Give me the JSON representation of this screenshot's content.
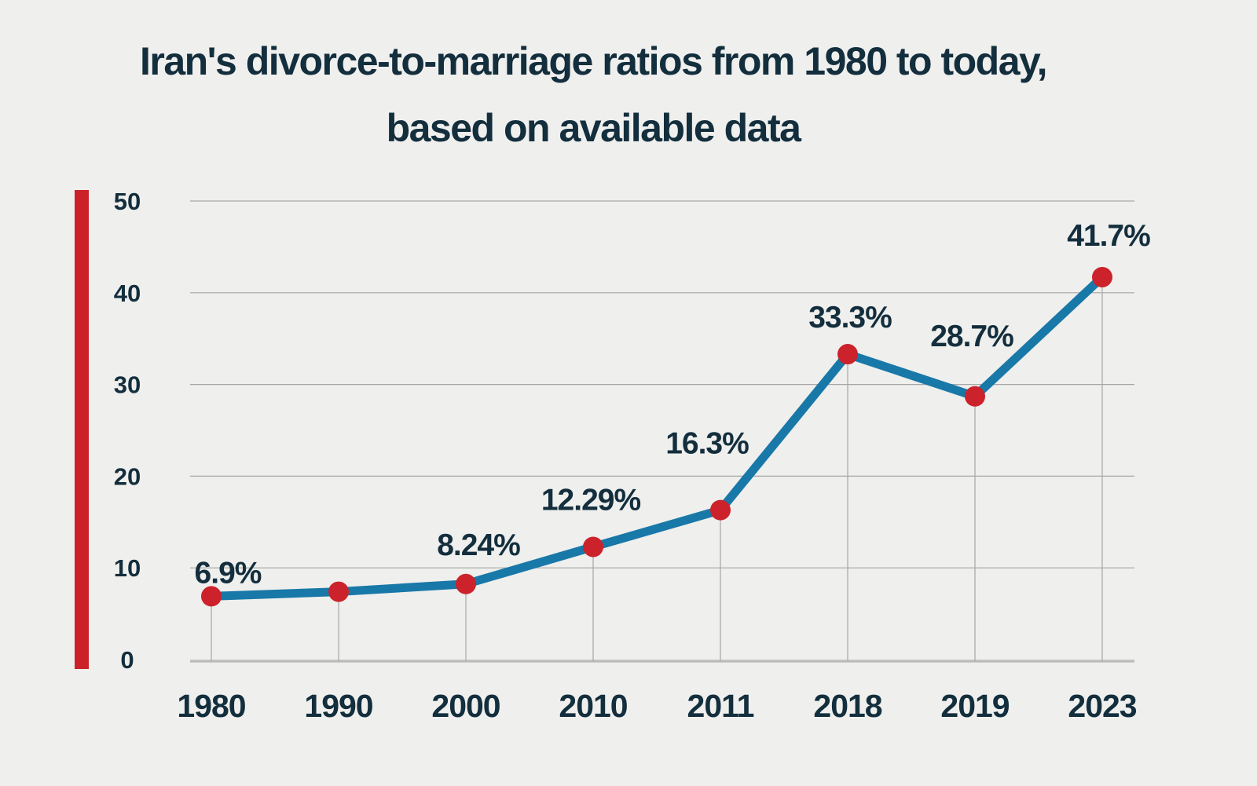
{
  "title": {
    "line1": "Iran's divorce-to-marriage ratios from 1980 to today,",
    "line2": "based on available data"
  },
  "chart_data": {
    "type": "line",
    "title": "Iran's divorce-to-marriage ratios from 1980 to today, based on available data",
    "categories": [
      "1980",
      "1990",
      "2000",
      "2010",
      "2011",
      "2018",
      "2019",
      "2023"
    ],
    "values": [
      6.9,
      7.4,
      8.24,
      12.29,
      16.3,
      33.3,
      28.7,
      41.7
    ],
    "point_labels": [
      "6.9%",
      "",
      "8.24%",
      "12.29%",
      "16.3%",
      "33.3%",
      "28.7%",
      "41.7%"
    ],
    "xlabel": "",
    "ylabel": "",
    "ylim": [
      0,
      50
    ],
    "yticks": [
      0,
      10,
      20,
      30,
      40,
      50
    ],
    "grid": "horizontal gridlines at each y tick; vertical stub from each data point down to x-axis",
    "legend_position": "none",
    "colors": {
      "line": "#1878a8",
      "marker": "#cc222b",
      "accent_bar": "#cc2129",
      "background": "#efefed",
      "text": "#132e3d",
      "grid": "#a6a6a6",
      "axis": "#bdbdbd"
    }
  }
}
